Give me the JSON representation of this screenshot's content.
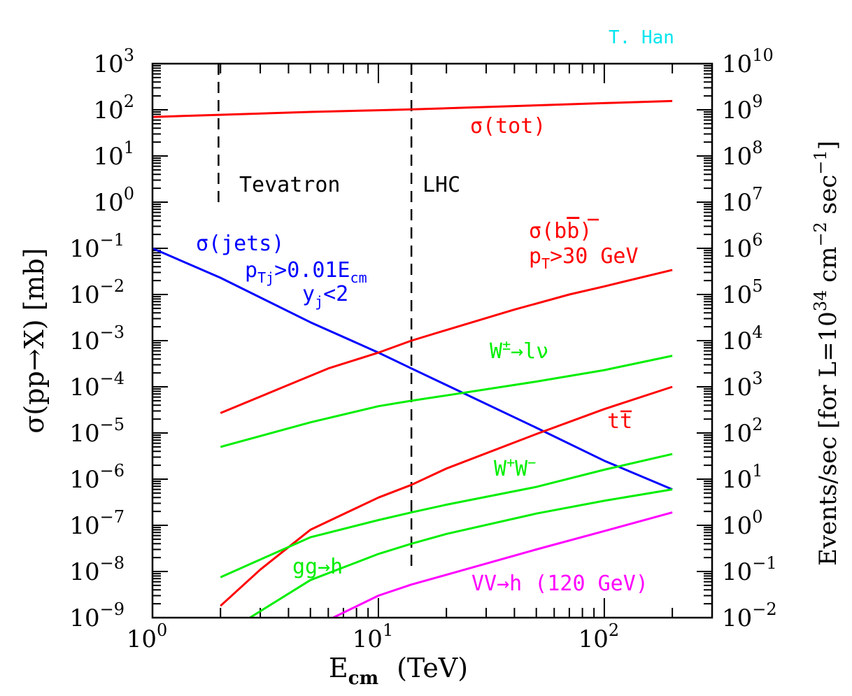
{
  "chart_data": {
    "type": "line",
    "credit": "T. Han",
    "x_scale": "log",
    "y_scale": "log",
    "xlim": [
      1,
      300
    ],
    "ylim": [
      1e-09,
      1000
    ],
    "y2lim": [
      0.01,
      10000000000
    ],
    "x_ticks": [
      {
        "base": "10",
        "exp": "0",
        "value": 1
      },
      {
        "base": "10",
        "exp": "1",
        "value": 10
      },
      {
        "base": "10",
        "exp": "2",
        "value": 100
      }
    ],
    "y_ticks": [
      {
        "base": "10",
        "exp": "−9",
        "value": 1e-09
      },
      {
        "base": "10",
        "exp": "−8",
        "value": 1e-08
      },
      {
        "base": "10",
        "exp": "−7",
        "value": 1e-07
      },
      {
        "base": "10",
        "exp": "−6",
        "value": 1e-06
      },
      {
        "base": "10",
        "exp": "−5",
        "value": 1e-05
      },
      {
        "base": "10",
        "exp": "−4",
        "value": 0.0001
      },
      {
        "base": "10",
        "exp": "−3",
        "value": 0.001
      },
      {
        "base": "10",
        "exp": "−2",
        "value": 0.01
      },
      {
        "base": "10",
        "exp": "−1",
        "value": 0.1
      },
      {
        "base": "10",
        "exp": "0",
        "value": 1
      },
      {
        "base": "10",
        "exp": "1",
        "value": 10
      },
      {
        "base": "10",
        "exp": "2",
        "value": 100
      },
      {
        "base": "10",
        "exp": "3",
        "value": 1000
      }
    ],
    "y2_ticks": [
      {
        "base": "10",
        "exp": "−2",
        "value": 0.01
      },
      {
        "base": "10",
        "exp": "−1",
        "value": 0.1
      },
      {
        "base": "10",
        "exp": "0",
        "value": 1
      },
      {
        "base": "10",
        "exp": "1",
        "value": 10
      },
      {
        "base": "10",
        "exp": "2",
        "value": 100
      },
      {
        "base": "10",
        "exp": "3",
        "value": 1000
      },
      {
        "base": "10",
        "exp": "4",
        "value": 10000
      },
      {
        "base": "10",
        "exp": "5",
        "value": 100000
      },
      {
        "base": "10",
        "exp": "6",
        "value": 1000000
      },
      {
        "base": "10",
        "exp": "7",
        "value": 10000000
      },
      {
        "base": "10",
        "exp": "8",
        "value": 100000000
      },
      {
        "base": "10",
        "exp": "9",
        "value": 1000000000
      },
      {
        "base": "10",
        "exp": "10",
        "value": 10000000000
      }
    ],
    "xlabel": {
      "main": "E",
      "sub": "cm",
      "unit": "(TeV)"
    },
    "ylabel": "σ(pp→X) [mb]",
    "y2label": {
      "pre": "Events/sec [for L=10",
      "exp": "34",
      "mid": " cm",
      "exp2": "−2",
      "mid2": " sec",
      "exp3": "−1",
      "post": "]"
    },
    "vlines": [
      {
        "label": "Tevatron",
        "x": 1.96,
        "ymin": 1,
        "ymax": 1000
      },
      {
        "label": "LHC",
        "x": 14,
        "ymin": 1e-08,
        "ymax": 1000
      }
    ],
    "colors": {
      "red": "#ff0000",
      "blue": "#0000ff",
      "green": "#00ee00",
      "magenta": "#ff00ff",
      "cyan": "#00e5ee",
      "black": "#000000"
    },
    "series": [
      {
        "key": "tot",
        "color": "red",
        "x": [
          1,
          2,
          5,
          10,
          14,
          50,
          100,
          200
        ],
        "y": [
          70,
          78,
          90,
          98,
          102,
          125,
          140,
          155
        ]
      },
      {
        "key": "jets",
        "color": "blue",
        "x": [
          1,
          2,
          5,
          10,
          14,
          50,
          100,
          200
        ],
        "y": [
          0.1,
          0.023,
          0.0025,
          0.00055,
          0.00025,
          1.3e-05,
          2.5e-06,
          6e-07
        ]
      },
      {
        "key": "bb",
        "color": "red",
        "x": [
          2,
          4,
          6,
          10,
          14,
          20,
          40,
          70,
          100,
          200
        ],
        "y": [
          2.7e-05,
          0.00011,
          0.00025,
          0.00055,
          0.001,
          0.0017,
          0.0047,
          0.01,
          0.015,
          0.034
        ]
      },
      {
        "key": "wlnu",
        "color": "green",
        "x": [
          2,
          5,
          10,
          14,
          20,
          50,
          100,
          200
        ],
        "y": [
          5e-06,
          1.7e-05,
          3.8e-05,
          5e-05,
          6.5e-05,
          0.00013,
          0.00023,
          0.00047
        ]
      },
      {
        "key": "tt",
        "color": "red",
        "x": [
          2,
          3,
          5,
          10,
          14,
          20,
          50,
          100,
          200
        ],
        "y": [
          1.8e-09,
          1.1e-08,
          8e-08,
          4e-07,
          7.5e-07,
          1.7e-06,
          9.5e-06,
          3.3e-05,
          0.0001
        ]
      },
      {
        "key": "ww",
        "color": "green",
        "x": [
          2,
          5,
          10,
          14,
          20,
          50,
          100,
          200
        ],
        "y": [
          7.5e-09,
          5.5e-08,
          1.3e-07,
          1.9e-07,
          2.8e-07,
          6.8e-07,
          1.6e-06,
          3.5e-06
        ]
      },
      {
        "key": "ggh",
        "color": "green",
        "x": [
          2.7,
          5,
          10,
          14,
          20,
          50,
          100,
          200
        ],
        "y": [
          1e-09,
          6.5e-09,
          2.4e-08,
          4e-08,
          6.5e-08,
          1.8e-07,
          3.4e-07,
          6e-07
        ]
      },
      {
        "key": "vvh",
        "color": "magenta",
        "x": [
          6.3,
          10,
          14,
          20,
          50,
          100,
          200
        ],
        "y": [
          1e-09,
          3e-09,
          5.2e-09,
          8.5e-09,
          3e-08,
          7.5e-08,
          1.9e-07
        ]
      }
    ],
    "annotations": {
      "tot": {
        "text": "σ(tot)"
      },
      "jets1": {
        "text": "σ(jets)"
      },
      "jets2": {
        "main": "p",
        "sub": "Tj",
        "rest": ">0.01E",
        "sub2": "cm"
      },
      "jets3": {
        "main": "y",
        "sub": "j",
        "rest": "<2"
      },
      "bb1": {
        "pre": "σ(b",
        "bar": "b",
        "post": ")"
      },
      "bb2": {
        "main": "p",
        "sub": "T",
        "rest": ">30 GeV"
      },
      "wlnu": {
        "pre": "W",
        "sup": "±",
        "post": "→lν"
      },
      "tt": {
        "pre": "t",
        "bar": "t"
      },
      "ww": {
        "pre": "W",
        "sup": "+",
        "mid": "W",
        "sup2": "−"
      },
      "ggh": {
        "text": "gg→h"
      },
      "vvh": {
        "text": "VV→h (120 GeV)"
      }
    }
  }
}
